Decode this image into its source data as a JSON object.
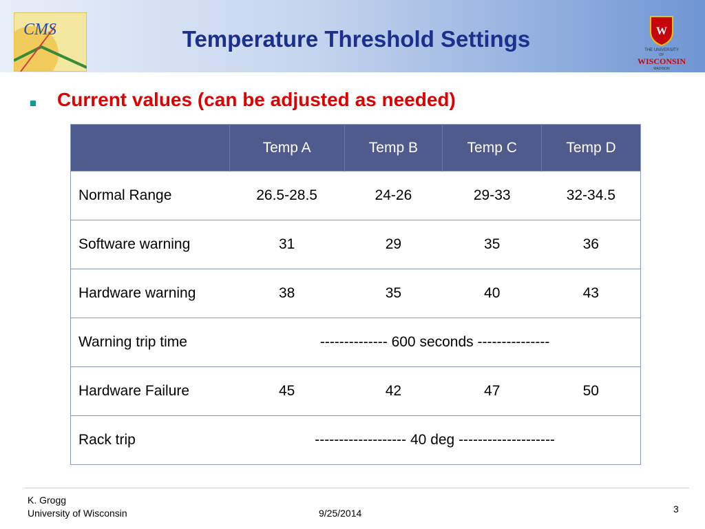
{
  "header": {
    "title": "Temperature Threshold Settings",
    "logo_left": "CMS",
    "logo_right": [
      "THE UNIVERSITY",
      "OF",
      "WISCONSIN",
      "MADISON"
    ]
  },
  "bullet": "Current values (can be adjusted as needed)",
  "table": {
    "columns": [
      "Temp A",
      "Temp B",
      "Temp C",
      "Temp D"
    ],
    "rows": [
      {
        "label": "Normal Range",
        "cells": [
          "26.5-28.5",
          "24-26",
          "29-33",
          "32-34.5"
        ]
      },
      {
        "label": "Software warning",
        "cells": [
          "31",
          "29",
          "35",
          "36"
        ]
      },
      {
        "label": "Hardware warning",
        "cells": [
          "38",
          "35",
          "40",
          "43"
        ]
      },
      {
        "label": "Warning trip time",
        "cells": [
          "--------------  600 seconds  ---------------"
        ]
      },
      {
        "label": "Hardware Failure",
        "cells": [
          "45",
          "42",
          "47",
          "50"
        ]
      },
      {
        "label": "Rack trip",
        "cells": [
          "-------------------  40 deg --------------------"
        ]
      }
    ]
  },
  "footer": {
    "author": "K. Grogg",
    "affiliation": "University of Wisconsin",
    "date": "9/25/2014",
    "page": "3"
  }
}
